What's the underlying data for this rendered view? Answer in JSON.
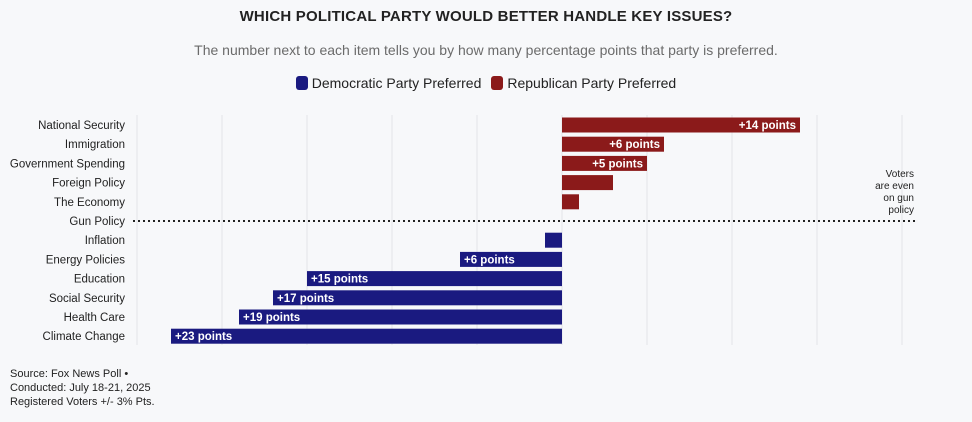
{
  "chart_data": {
    "type": "bar",
    "orientation": "horizontal-diverging",
    "title": "WHICH POLITICAL PARTY WOULD BETTER HANDLE KEY ISSUES?",
    "subtitle": "The number next to each item tells you by how many percentage points that party is preferred.",
    "legend": [
      {
        "label": "Democratic Party Preferred",
        "color": "#1a1a80"
      },
      {
        "label": "Republican Party Preferred",
        "color": "#8b1a1a"
      }
    ],
    "categories": [
      "National Security",
      "Immigration",
      "Government Spending",
      "Foreign Policy",
      "The Economy",
      "Gun Policy",
      "Inflation",
      "Energy Policies",
      "Education",
      "Social Security",
      "Health Care",
      "Climate Change"
    ],
    "values": [
      14,
      6,
      5,
      3,
      1,
      0,
      -1,
      -6,
      -15,
      -17,
      -19,
      -23
    ],
    "data_labels": [
      "+14 points",
      "+6 points",
      "+5 points",
      "",
      "",
      "",
      "",
      "+6 points",
      "+15 points",
      "+17 points",
      "+19 points",
      "+23 points"
    ],
    "xlim": [
      -25,
      20
    ],
    "annotation": [
      "Voters",
      "are even",
      "on gun",
      "policy"
    ],
    "colors": {
      "democratic": "#1a1a80",
      "republican": "#8b1a1a",
      "grid": "#e3e4e8",
      "divider": "#222222"
    }
  },
  "source": {
    "line1": "Source: Fox News Poll •",
    "line2": "Conducted: July 18-21, 2025",
    "line3": "Registered Voters +/- 3% Pts."
  }
}
